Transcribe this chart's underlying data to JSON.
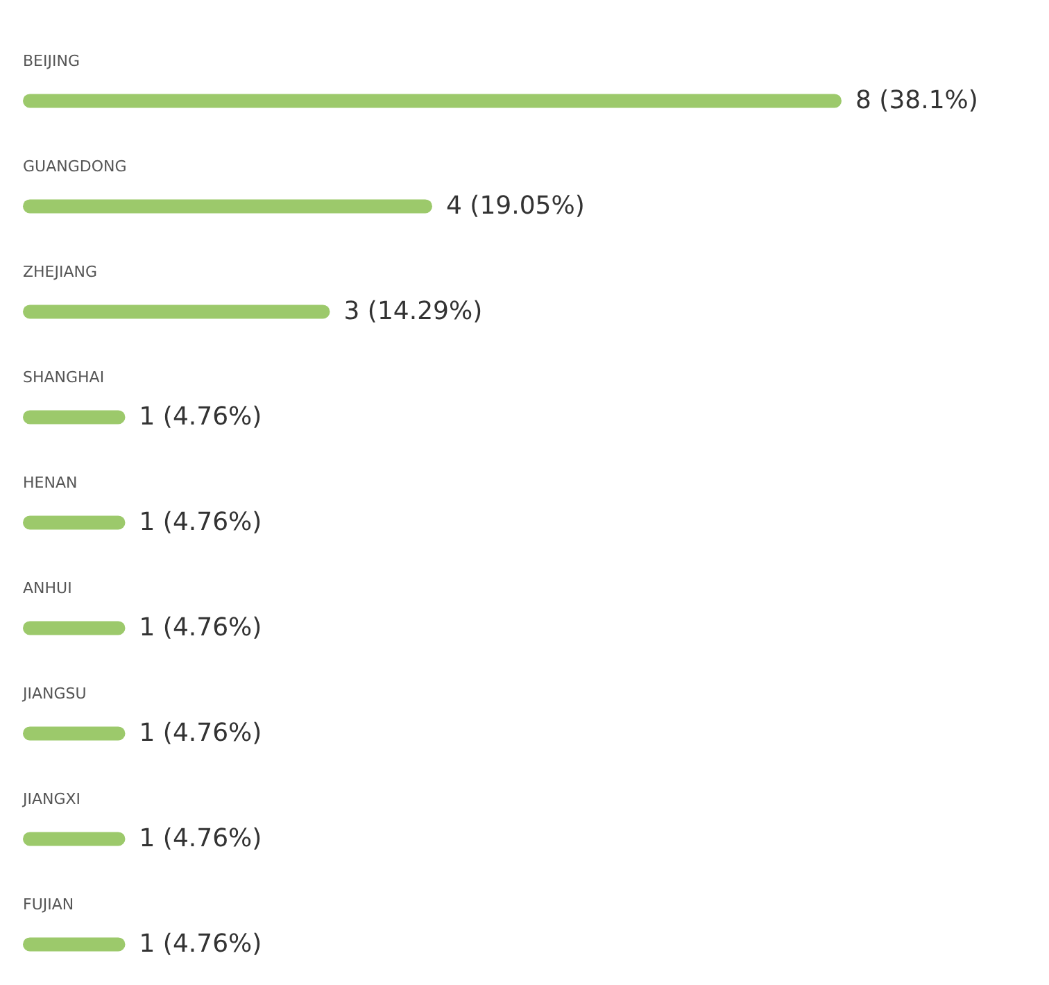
{
  "chart_data": {
    "type": "bar",
    "orientation": "horizontal",
    "categories": [
      "BEIJING",
      "GUANGDONG",
      "ZHEJIANG",
      "SHANGHAI",
      "HENAN",
      "ANHUI",
      "JIANGSU",
      "JIANGXI",
      "FUJIAN"
    ],
    "values": [
      8,
      4,
      3,
      1,
      1,
      1,
      1,
      1,
      1
    ],
    "value_labels": [
      "8   (38.1%)",
      "4   (19.05%)",
      "3   (14.29%)",
      "1   (4.76%)",
      "1   (4.76%)",
      "1   (4.76%)",
      "1   (4.76%)",
      "1   (4.76%)",
      "1   (4.76%)"
    ],
    "color": "#9cc96b"
  }
}
